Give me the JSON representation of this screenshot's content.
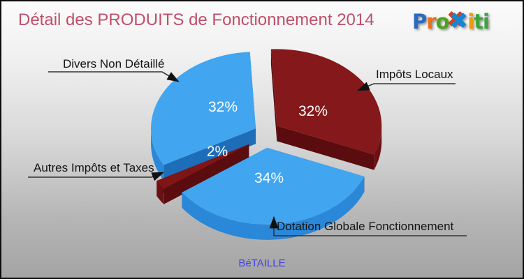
{
  "header": {
    "title": "Détail des PRODUITS de Fonctionnement 2014",
    "title_color": "#c04f6a"
  },
  "logo": {
    "name": "Proxiti",
    "letters": [
      {
        "ch": "P",
        "color": "#2a6bc4"
      },
      {
        "ch": "r",
        "color": "#e8721c"
      },
      {
        "ch": "o",
        "color": "#4ca41d"
      },
      {
        "ch": "✖",
        "color": "#1486d8",
        "big": true
      },
      {
        "ch": "i",
        "color": "#f29a02"
      },
      {
        "ch": "t",
        "color": "#3ba43a"
      },
      {
        "ch": "i",
        "color": "#3ba43a"
      }
    ]
  },
  "chart_data": {
    "type": "pie",
    "title": "Détail des PRODUITS de Fonctionnement 2014",
    "unit": "%",
    "style": "3d-exploded",
    "legend_position": "callouts",
    "slices": [
      {
        "label": "Divers Non Détaillé",
        "value": 32,
        "pct_label": "32%",
        "colors": {
          "top": "#41a5f0",
          "rim": "#2b87d8",
          "wall": "#1d6db8"
        }
      },
      {
        "label": "Autres Impôts et Taxes",
        "value": 2,
        "pct_label": "2%",
        "colors": {
          "top": "#7f1517",
          "rim": "#6b1013",
          "wall": "#5a0c0e"
        }
      },
      {
        "label": "Dotation Globale Fonctionnement",
        "value": 34,
        "pct_label": "34%",
        "colors": {
          "top": "#41a5f0",
          "rim": "#2b87d8",
          "wall": "#1d6db8"
        }
      },
      {
        "label": "Impôts Locaux",
        "value": 32,
        "pct_label": "32%",
        "colors": {
          "top": "#85181a",
          "rim": "#6b1013",
          "wall": "#5a0c0e"
        }
      }
    ]
  },
  "footer": {
    "commune": "BéTAILLE",
    "color": "#4343e2"
  }
}
